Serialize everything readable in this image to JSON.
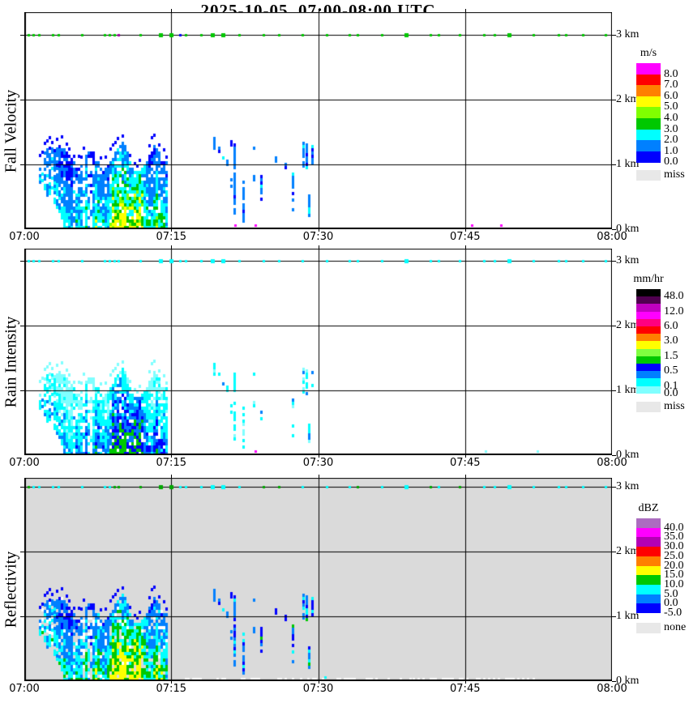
{
  "title": "2025-10-05  07:00-08:00 UTC",
  "axes": {
    "time_ticks": [
      "07:00",
      "07:15",
      "07:30",
      "07:45",
      "08:00"
    ],
    "height_ticks": [
      "3 km",
      "2 km",
      "1 km",
      "0 km"
    ]
  },
  "panels": [
    {
      "label": "Fall Velocity",
      "units": "m/s",
      "background": "#FFFFFF",
      "marker_color": "#00C800",
      "legend": {
        "title": "m/s",
        "bands": [
          {
            "color": "#FF00FF",
            "label": "8.0"
          },
          {
            "color": "#FF0000",
            "label": "7.0"
          },
          {
            "color": "#FF8000",
            "label": "6.0"
          },
          {
            "color": "#FFFF00",
            "label": "5.0"
          },
          {
            "color": "#80FF00",
            "label": "4.0"
          },
          {
            "color": "#00C800",
            "label": "3.0"
          },
          {
            "color": "#00FFFF",
            "label": "2.0"
          },
          {
            "color": "#0080FF",
            "label": "1.0"
          },
          {
            "color": "#0000FF",
            "label": "0.0"
          }
        ],
        "miss": {
          "color": "#E8E8E8",
          "label": "miss"
        }
      }
    },
    {
      "label": "Rain Intensity",
      "units": "mm/hr",
      "background": "#FFFFFF",
      "marker_color": "#00FFFF",
      "legend": {
        "title": "mm/hr",
        "bands": [
          {
            "color": "#000000",
            "label": "48.0"
          },
          {
            "color": "#500050",
            "label": ""
          },
          {
            "color": "#C000C0",
            "label": "12.0"
          },
          {
            "color": "#FF00FF",
            "label": ""
          },
          {
            "color": "#FF0080",
            "label": "6.0"
          },
          {
            "color": "#FF0000",
            "label": ""
          },
          {
            "color": "#FF8000",
            "label": "3.0"
          },
          {
            "color": "#FFFF00",
            "label": ""
          },
          {
            "color": "#80FF40",
            "label": "1.5"
          },
          {
            "color": "#00C800",
            "label": ""
          },
          {
            "color": "#0000FF",
            "label": "0.5"
          },
          {
            "color": "#0080FF",
            "label": ""
          },
          {
            "color": "#00FFFF",
            "label": "0.1"
          },
          {
            "color": "#80FFFF",
            "label": "0.0"
          }
        ],
        "miss": {
          "color": "#E8E8E8",
          "label": "miss"
        }
      }
    },
    {
      "label": "Reflectivity",
      "units": "dBZ",
      "background": "#DADADA",
      "marker_color": "#00FFFF",
      "marker_alt_color": "#00A800",
      "legend": {
        "title": "dBZ",
        "bands": [
          {
            "color": "#AC6CC0",
            "label": "40.0"
          },
          {
            "color": "#FF00FF",
            "label": "35.0"
          },
          {
            "color": "#B400B4",
            "label": "30.0"
          },
          {
            "color": "#FF0000",
            "label": "25.0"
          },
          {
            "color": "#FF8000",
            "label": "20.0"
          },
          {
            "color": "#FFFF00",
            "label": "15.0"
          },
          {
            "color": "#00C800",
            "label": "10.0"
          },
          {
            "color": "#00FFFF",
            "label": "5.0"
          },
          {
            "color": "#0080FF",
            "label": "0.0"
          },
          {
            "color": "#0000FF",
            "label": "-5.0"
          }
        ],
        "miss": {
          "color": "#E8E8E8",
          "label": "none"
        }
      }
    }
  ],
  "chart_data": {
    "type": "heatmap",
    "x_range_utc": [
      "07:00",
      "08:00"
    ],
    "y_range_km": [
      0,
      3
    ],
    "grid": {
      "x_lines_min": [
        15,
        30,
        45
      ],
      "y_lines_km": [
        1,
        2,
        3
      ]
    },
    "marker_row_km": 3,
    "marker_times_min": [
      0.4,
      0.9,
      1.5,
      2.9,
      3.5,
      5.9,
      8.2,
      8.7,
      9.2,
      9.6,
      11.8,
      13.9,
      15.0,
      15.9,
      16.5,
      18.0,
      19.2,
      20.3,
      21.9,
      24.4,
      26.0,
      28.4,
      30.9,
      33.2,
      34.0,
      36.5,
      39.0,
      41.5,
      42.3,
      44.4,
      46.9,
      48.0,
      49.5,
      52.0,
      54.5,
      55.3,
      57.0,
      59.3
    ],
    "special_markers": [
      {
        "panel": 0,
        "min": 9.6,
        "color": "#A000A0"
      },
      {
        "panel": 0,
        "min": 15.9,
        "color": "#0000FF"
      }
    ],
    "events": {
      "main_cell": {
        "start_min": 1.45,
        "end_min": 14.6,
        "top_km_range": [
          0.75,
          1.42
        ],
        "reaches_ground_after_min": 4.3
      },
      "scattered_cell_segments": [
        [
          18.0,
          1.26,
          1.34
        ],
        [
          19.3,
          1.22,
          1.38
        ],
        [
          19.8,
          1.17,
          1.23
        ],
        [
          20.2,
          1.02,
          1.1
        ],
        [
          20.6,
          0.88,
          1.06
        ],
        [
          21.0,
          1.28,
          1.34
        ],
        [
          21.05,
          0.64,
          0.76
        ],
        [
          21.35,
          0.22,
          1.32
        ],
        [
          22.3,
          0.1,
          0.76
        ],
        [
          23.3,
          1.22,
          1.3
        ],
        [
          23.35,
          0.74,
          0.84
        ],
        [
          24.1,
          0.44,
          0.82
        ],
        [
          25.6,
          1.02,
          1.16
        ],
        [
          26.6,
          0.92,
          0.98
        ],
        [
          27.3,
          0.28,
          0.86
        ],
        [
          28.4,
          0.95,
          1.35
        ],
        [
          28.7,
          0.92,
          1.3
        ],
        [
          29.0,
          0.14,
          0.52
        ],
        [
          29.3,
          1.0,
          1.26
        ]
      ],
      "late_bottom_specks": {
        "fall_velocity_magenta_min": [
          21.4,
          23.5,
          45.6,
          48.6
        ],
        "rain_intensity_magenta_min": [
          23.5
        ],
        "rain_intensity_cyan_min": [
          47.0,
          52.3
        ],
        "reflectivity_white_streaks_min_range": [
          15.6,
          52.0
        ],
        "reflectivity_cyan_min": [
          30.6
        ]
      }
    },
    "render_seed": 7
  }
}
